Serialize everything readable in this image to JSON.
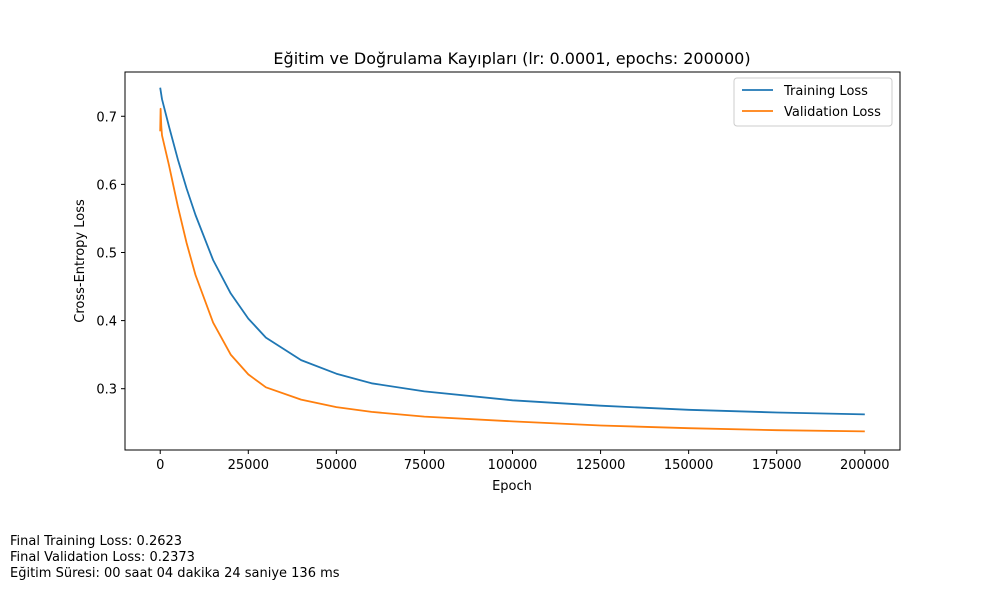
{
  "chart_data": {
    "type": "line",
    "title": "Eğitim ve Doğrulama Kayıpları (lr: 0.0001, epochs: 200000)",
    "xlabel": "Epoch",
    "ylabel": "Cross-Entropy Loss",
    "xlim": [
      -10000,
      210000
    ],
    "ylim": [
      0.21,
      0.765
    ],
    "xticks": [
      0,
      25000,
      50000,
      75000,
      100000,
      125000,
      150000,
      175000,
      200000
    ],
    "yticks": [
      0.3,
      0.4,
      0.5,
      0.6,
      0.7
    ],
    "xtick_labels": [
      "0",
      "25000",
      "50000",
      "75000",
      "100000",
      "125000",
      "150000",
      "175000",
      "200000"
    ],
    "ytick_labels": [
      "0.3",
      "0.4",
      "0.5",
      "0.6",
      "0.7"
    ],
    "grid": false,
    "legend_position": "top-right",
    "series": [
      {
        "name": "Training Loss",
        "color": "#1f77b4",
        "x": [
          0,
          500,
          2500,
          5000,
          7500,
          10000,
          15000,
          20000,
          25000,
          30000,
          40000,
          50000,
          60000,
          75000,
          100000,
          125000,
          150000,
          175000,
          200000
        ],
        "y": [
          0.742,
          0.725,
          0.685,
          0.637,
          0.594,
          0.555,
          0.489,
          0.44,
          0.403,
          0.375,
          0.342,
          0.322,
          0.308,
          0.296,
          0.283,
          0.275,
          0.269,
          0.265,
          0.2623
        ]
      },
      {
        "name": "Validation Loss",
        "color": "#ff7f0e",
        "x": [
          0,
          100,
          300,
          500,
          2500,
          5000,
          7500,
          10000,
          15000,
          20000,
          25000,
          30000,
          40000,
          50000,
          60000,
          75000,
          100000,
          125000,
          150000,
          175000,
          200000
        ],
        "y": [
          0.678,
          0.711,
          0.685,
          0.672,
          0.628,
          0.568,
          0.514,
          0.467,
          0.397,
          0.35,
          0.321,
          0.302,
          0.284,
          0.273,
          0.266,
          0.259,
          0.252,
          0.246,
          0.242,
          0.239,
          0.2373
        ]
      }
    ]
  },
  "footer": {
    "line1": "Final Training Loss: 0.2623",
    "line2": "Final Validation Loss: 0.2373",
    "line3": "Eğitim Süresi: 00 saat 04 dakika 24 saniye 136 ms"
  }
}
